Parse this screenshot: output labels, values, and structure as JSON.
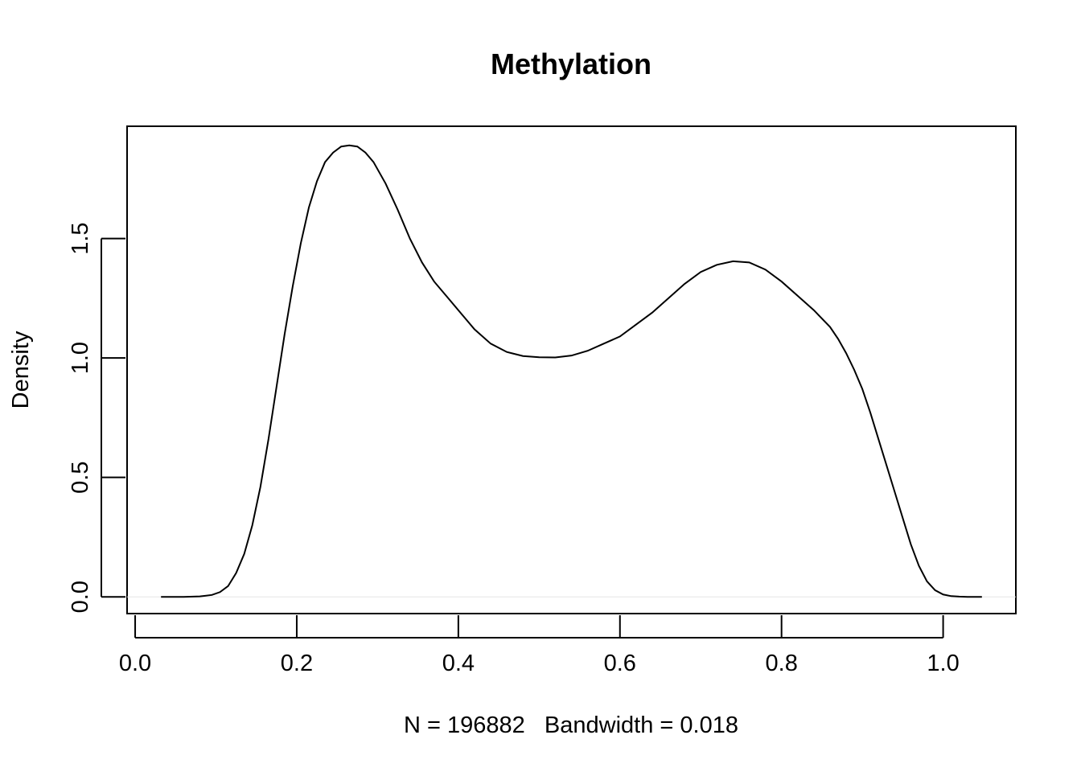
{
  "chart_data": {
    "type": "line",
    "title": "Methylation",
    "xlabel": "N = 196882   Bandwidth = 0.018",
    "ylabel": "Density",
    "xlim": [
      -0.01,
      1.09
    ],
    "ylim": [
      -0.07,
      1.97
    ],
    "x_ticks": [
      0.0,
      0.2,
      0.4,
      0.6,
      0.8,
      1.0
    ],
    "x_tick_labels": [
      "0.0",
      "0.2",
      "0.4",
      "0.6",
      "0.8",
      "1.0"
    ],
    "y_ticks": [
      0.0,
      0.5,
      1.0,
      1.5
    ],
    "y_tick_labels": [
      "0.0",
      "0.5",
      "1.0",
      "1.5"
    ],
    "zero_line": true,
    "grid": false,
    "line_color": "#000000",
    "series": [
      {
        "x": [
          0.032,
          0.06,
          0.08,
          0.095,
          0.105,
          0.115,
          0.125,
          0.135,
          0.145,
          0.155,
          0.165,
          0.175,
          0.185,
          0.195,
          0.205,
          0.215,
          0.225,
          0.235,
          0.245,
          0.255,
          0.265,
          0.275,
          0.285,
          0.295,
          0.31,
          0.325,
          0.34,
          0.355,
          0.37,
          0.385,
          0.4,
          0.42,
          0.44,
          0.46,
          0.48,
          0.5,
          0.52,
          0.54,
          0.56,
          0.58,
          0.6,
          0.62,
          0.64,
          0.66,
          0.68,
          0.7,
          0.72,
          0.74,
          0.76,
          0.78,
          0.8,
          0.82,
          0.84,
          0.86,
          0.87,
          0.88,
          0.89,
          0.9,
          0.91,
          0.92,
          0.93,
          0.94,
          0.95,
          0.96,
          0.97,
          0.98,
          0.99,
          1.0,
          1.01,
          1.02,
          1.03,
          1.048
        ],
        "y": [
          0.0,
          0.0,
          0.002,
          0.008,
          0.02,
          0.045,
          0.1,
          0.18,
          0.3,
          0.46,
          0.66,
          0.88,
          1.1,
          1.3,
          1.48,
          1.63,
          1.74,
          1.82,
          1.86,
          1.885,
          1.89,
          1.885,
          1.86,
          1.82,
          1.73,
          1.62,
          1.5,
          1.4,
          1.32,
          1.26,
          1.2,
          1.12,
          1.06,
          1.025,
          1.008,
          1.003,
          1.002,
          1.01,
          1.03,
          1.06,
          1.09,
          1.14,
          1.19,
          1.25,
          1.31,
          1.36,
          1.39,
          1.405,
          1.4,
          1.37,
          1.32,
          1.26,
          1.2,
          1.13,
          1.08,
          1.02,
          0.95,
          0.87,
          0.77,
          0.66,
          0.55,
          0.44,
          0.33,
          0.22,
          0.13,
          0.065,
          0.028,
          0.01,
          0.003,
          0.001,
          0.0,
          0.0
        ]
      }
    ]
  }
}
